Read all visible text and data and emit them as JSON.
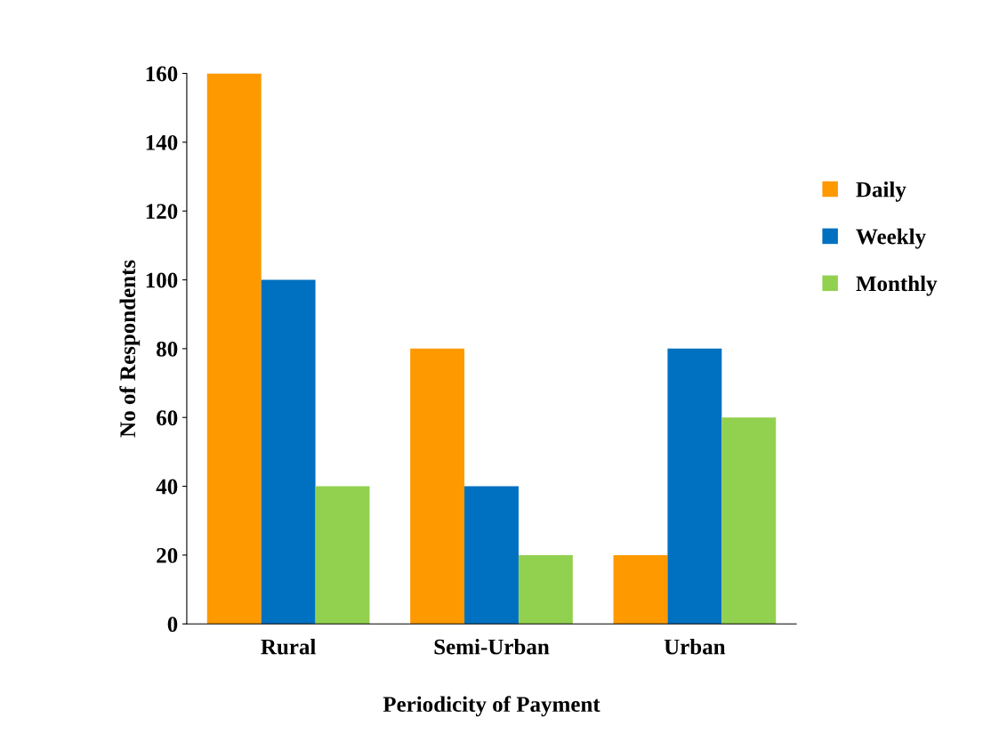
{
  "chart_data": {
    "type": "bar",
    "xlabel": "Periodicity of Payment",
    "ylabel": "No of Respondents",
    "categories": [
      "Rural",
      "Semi-Urban",
      "Urban"
    ],
    "series": [
      {
        "name": "Daily",
        "color": "#ff9900",
        "values": [
          160,
          80,
          20
        ]
      },
      {
        "name": "Weekly",
        "color": "#0070c0",
        "values": [
          100,
          40,
          80
        ]
      },
      {
        "name": "Monthly",
        "color": "#92d050",
        "values": [
          40,
          20,
          60
        ]
      }
    ],
    "ylim": [
      0,
      160
    ],
    "yticks": [
      0,
      20,
      40,
      60,
      80,
      100,
      120,
      140,
      160
    ],
    "grid": false,
    "legend": "right"
  }
}
